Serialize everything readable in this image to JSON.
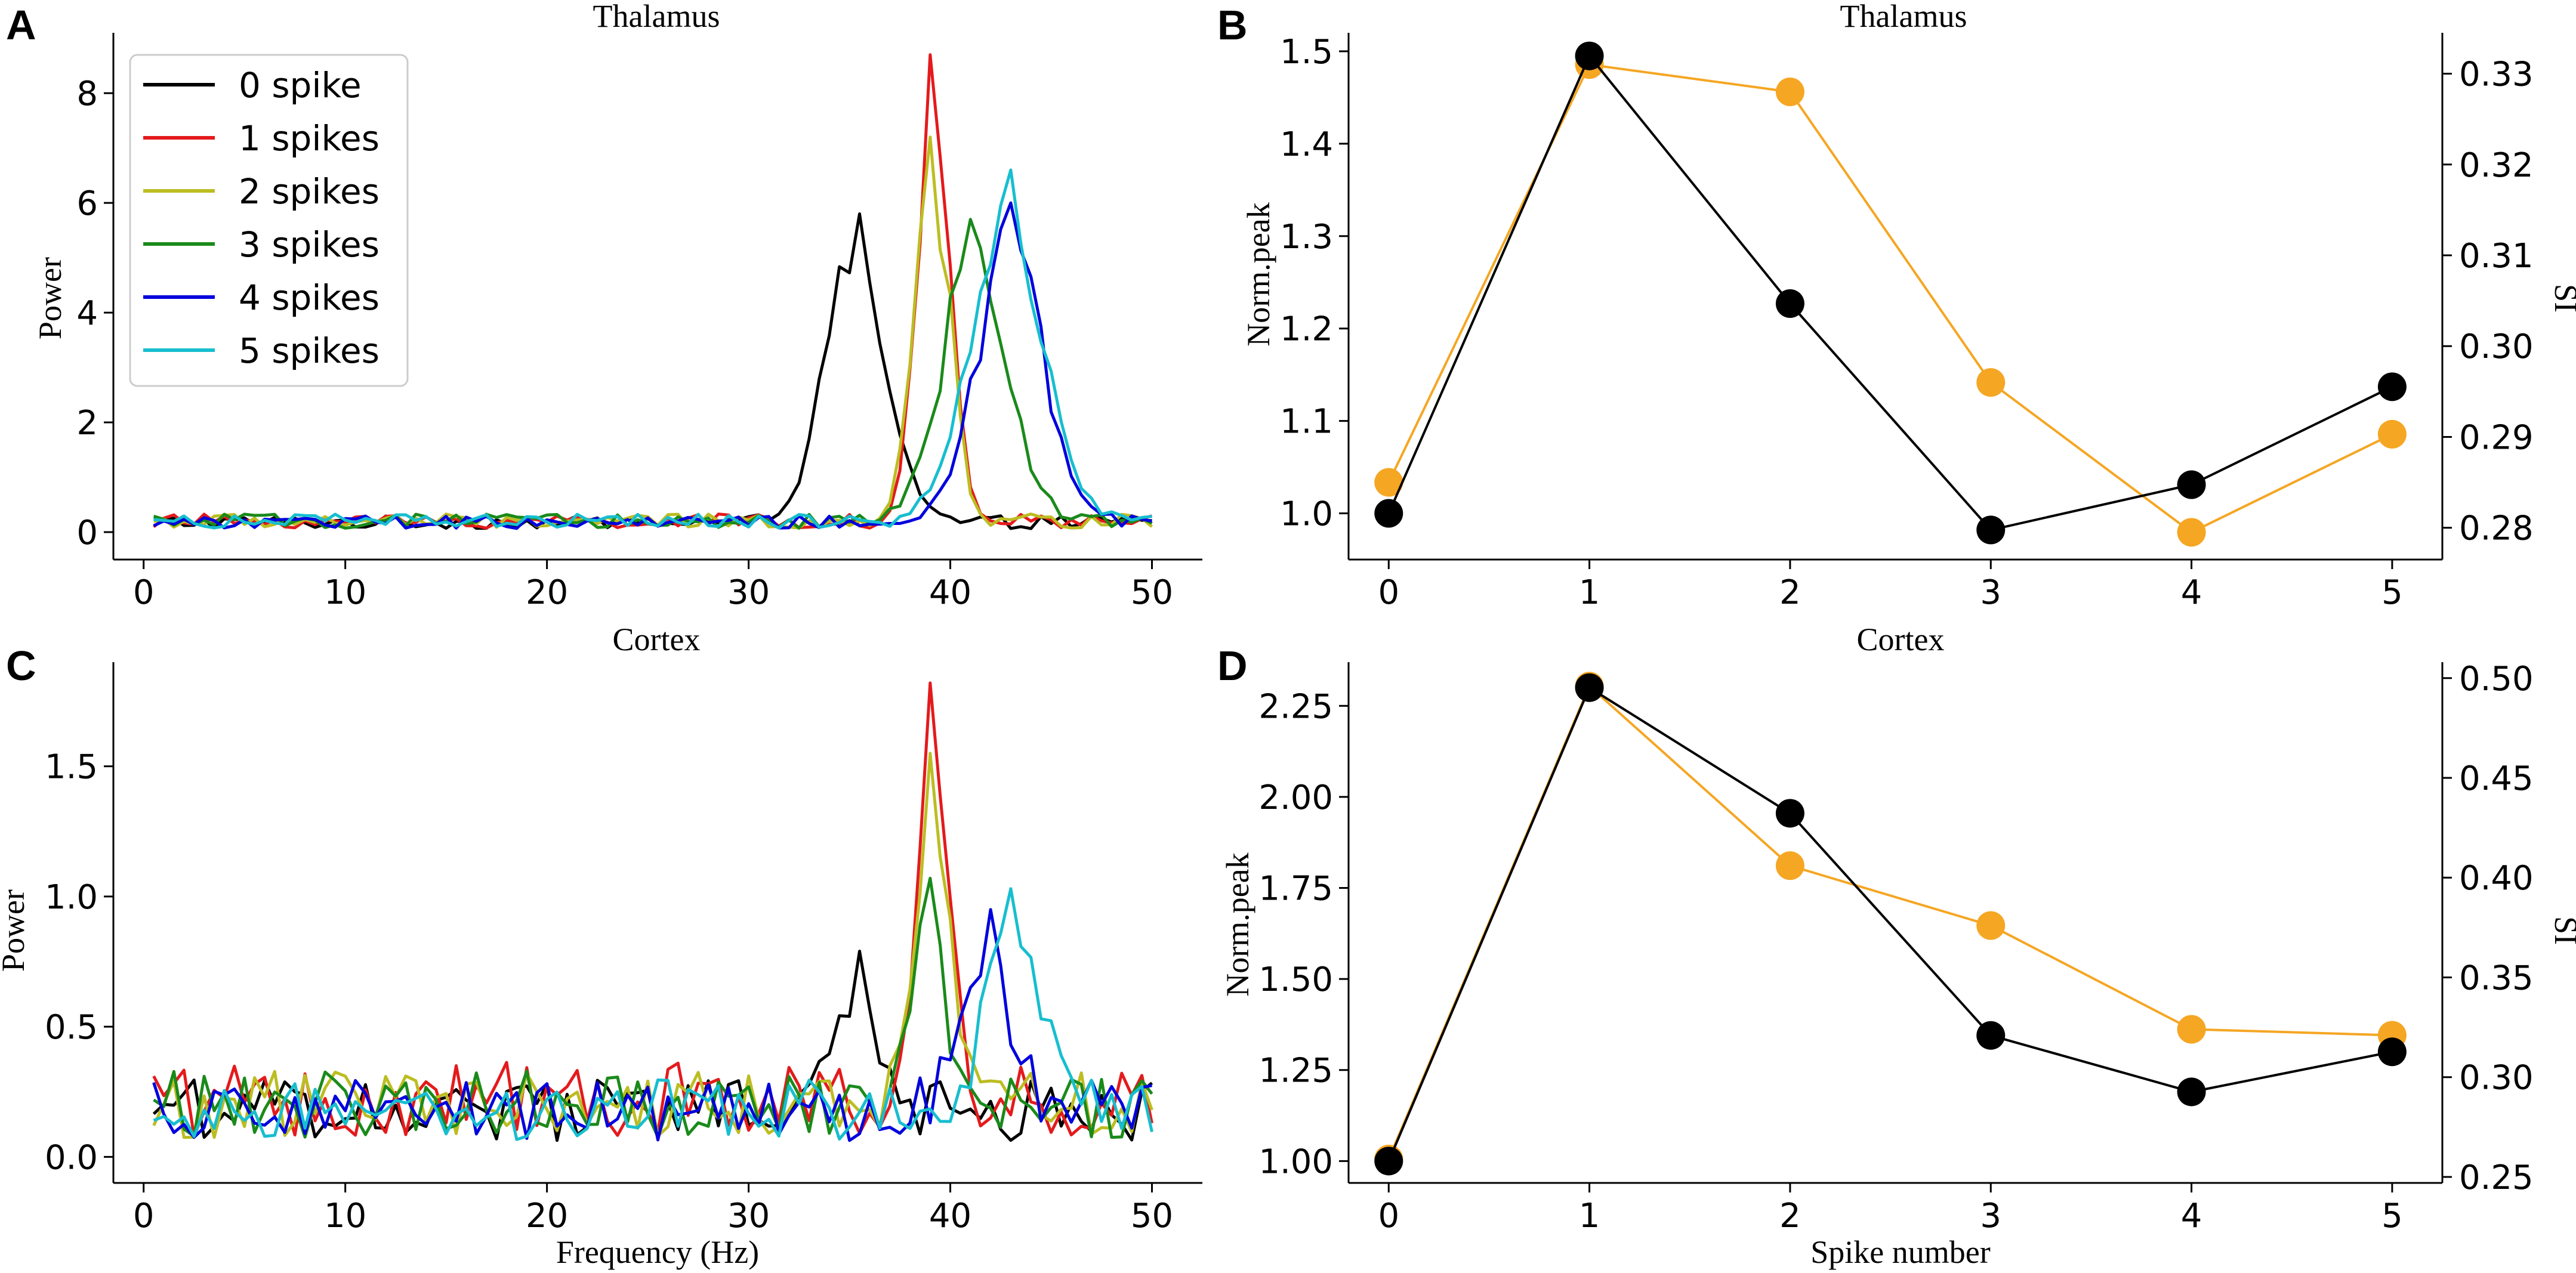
{
  "figure": {
    "panel_labels": [
      "A",
      "B",
      "C",
      "D"
    ]
  },
  "colors": {
    "s0": "#000000",
    "s1": "#e41a1c",
    "s2": "#bcbd22",
    "s3": "#1a8a1a",
    "s4": "#0000dd",
    "s5": "#17becf",
    "norm": "#000000",
    "si": "#f5a623"
  },
  "chart_data": [
    {
      "id": "A",
      "type": "line",
      "title": "Thalamus",
      "xlabel": "",
      "ylabel": "Power",
      "xlim": [
        -1.5,
        52.5
      ],
      "ylim": [
        -0.5,
        9.1
      ],
      "xticks": [
        0,
        10,
        20,
        30,
        40,
        50
      ],
      "yticks": [
        0,
        2,
        4,
        6,
        8
      ],
      "legend": {
        "placement": "top-left",
        "entries": [
          "0 spike",
          "1 spikes",
          "2 spikes",
          "3 spikes",
          "4 spikes",
          "5 spikes"
        ]
      },
      "peaks": [
        {
          "name": "0 spike",
          "peak_x": 35.3,
          "peak_y": 5.8,
          "width": 1.5,
          "base": 0.18
        },
        {
          "name": "1 spikes",
          "peak_x": 39.2,
          "peak_y": 8.7,
          "width": 0.8,
          "base": 0.2
        },
        {
          "name": "2 spikes",
          "peak_x": 39.1,
          "peak_y": 7.2,
          "width": 0.9,
          "base": 0.2
        },
        {
          "name": "3 spikes",
          "peak_x": 41.2,
          "peak_y": 5.7,
          "width": 1.6,
          "base": 0.2
        },
        {
          "name": "4 spikes",
          "peak_x": 43.0,
          "peak_y": 6.0,
          "width": 1.6,
          "base": 0.18
        },
        {
          "name": "5 spikes",
          "peak_x": 42.8,
          "peak_y": 6.6,
          "width": 1.8,
          "base": 0.2
        }
      ]
    },
    {
      "id": "B",
      "type": "line",
      "title": "Thalamus",
      "xlabel": "",
      "ylabel": "Norm.peak",
      "ylabel_right": "SI",
      "xlim": [
        -0.2,
        5.25
      ],
      "ylim": [
        0.95,
        1.52
      ],
      "ylim_right": [
        0.2765,
        0.3345
      ],
      "xticks": [
        0,
        1,
        2,
        3,
        4,
        5
      ],
      "yticks": [
        "1.0",
        "1.1",
        "1.2",
        "1.3",
        "1.4",
        "1.5"
      ],
      "yticks_right": [
        "0.28",
        "0.29",
        "0.30",
        "0.31",
        "0.32",
        "0.33"
      ],
      "x": [
        0,
        1,
        2,
        3,
        4,
        5
      ],
      "series": [
        {
          "name": "Norm.peak",
          "axis": "left",
          "values": [
            1.0,
            1.495,
            1.227,
            0.982,
            1.031,
            1.137
          ]
        },
        {
          "name": "SI",
          "axis": "right",
          "values": [
            0.285,
            0.331,
            0.328,
            0.296,
            0.2795,
            0.2903
          ]
        }
      ]
    },
    {
      "id": "C",
      "type": "line",
      "title": "Cortex",
      "xlabel": "Frequency (Hz)",
      "ylabel": "Power",
      "xlim": [
        -1.5,
        52.5
      ],
      "ylim": [
        -0.1,
        1.9
      ],
      "xticks": [
        0,
        10,
        20,
        30,
        40,
        50
      ],
      "yticks": [
        "0.0",
        "0.5",
        "1.0",
        "1.5"
      ],
      "peaks": [
        {
          "name": "0 spike",
          "peak_x": 35.3,
          "peak_y": 0.79,
          "width": 1.0,
          "base": 0.18
        },
        {
          "name": "1 spikes",
          "peak_x": 39.2,
          "peak_y": 1.82,
          "width": 0.8,
          "base": 0.22
        },
        {
          "name": "2 spikes",
          "peak_x": 39.1,
          "peak_y": 1.55,
          "width": 0.8,
          "base": 0.2
        },
        {
          "name": "3 spikes",
          "peak_x": 39.0,
          "peak_y": 1.07,
          "width": 0.8,
          "base": 0.2
        },
        {
          "name": "4 spikes",
          "peak_x": 41.8,
          "peak_y": 0.95,
          "width": 1.1,
          "base": 0.18
        },
        {
          "name": "5 spikes",
          "peak_x": 43.2,
          "peak_y": 1.03,
          "width": 1.3,
          "base": 0.18
        }
      ]
    },
    {
      "id": "D",
      "type": "line",
      "title": "Cortex",
      "xlabel": "Spike number",
      "ylabel": "Norm.peak",
      "ylabel_right": "SI",
      "xlim": [
        -0.2,
        5.25
      ],
      "ylim": [
        0.94,
        2.37
      ],
      "ylim_right": [
        0.247,
        0.508
      ],
      "xticks": [
        0,
        1,
        2,
        3,
        4,
        5
      ],
      "yticks": [
        "1.00",
        "1.25",
        "1.50",
        "1.75",
        "2.00",
        "2.25"
      ],
      "yticks_right": [
        "0.25",
        "0.30",
        "0.35",
        "0.40",
        "0.45",
        "0.50"
      ],
      "x": [
        0,
        1,
        2,
        3,
        4,
        5
      ],
      "series": [
        {
          "name": "Norm.peak",
          "axis": "left",
          "values": [
            1.0,
            2.3,
            1.955,
            1.345,
            1.19,
            1.3
          ]
        },
        {
          "name": "SI",
          "axis": "right",
          "values": [
            0.259,
            0.496,
            0.406,
            0.376,
            0.324,
            0.321
          ]
        }
      ]
    }
  ]
}
